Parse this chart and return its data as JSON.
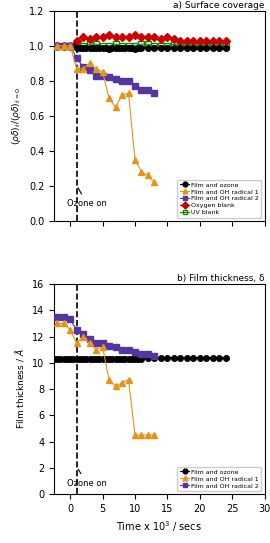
{
  "panel_a_title": "a) Surface coverage",
  "panel_b_title": "b) Film thickness, δ",
  "xlabel": "Time x 10³ / secs",
  "ozone_label": "Ozone on",
  "film_ozone_color": "#000000",
  "oh_radical1_color": "#E8921A",
  "oh_radical2_color": "#5535A0",
  "oxygen_blank_color": "#CC0000",
  "uv_blank_color": "#009000",
  "dashed_x": 1.0,
  "panel_a": {
    "film_ozone": {
      "x": [
        -2.5,
        -2,
        -1.5,
        -1,
        -0.5,
        0,
        0.5,
        1,
        1.5,
        2,
        2.5,
        3,
        3.5,
        4,
        4.5,
        5,
        5.5,
        6,
        6.5,
        7,
        7.5,
        8,
        8.5,
        9,
        9.5,
        10,
        10.5,
        11,
        12,
        13,
        14,
        15,
        16,
        17,
        18,
        19,
        20,
        21,
        22,
        23,
        24
      ],
      "y": [
        1.0,
        1.0,
        1.0,
        1.0,
        1.0,
        1.0,
        1.0,
        0.99,
        0.99,
        0.99,
        0.99,
        0.99,
        0.99,
        0.99,
        0.99,
        0.99,
        0.99,
        0.98,
        0.99,
        0.99,
        0.99,
        0.99,
        0.99,
        0.99,
        0.99,
        0.98,
        0.99,
        0.99,
        0.99,
        0.99,
        0.99,
        0.99,
        0.99,
        0.99,
        0.99,
        0.99,
        0.99,
        0.99,
        0.99,
        0.99,
        0.99
      ]
    },
    "oh_radical1": {
      "x": [
        -2,
        -1,
        0,
        1,
        2,
        3,
        4,
        5,
        6,
        7,
        8,
        9,
        10,
        11,
        12,
        13
      ],
      "y": [
        1.0,
        1.0,
        1.0,
        0.87,
        0.87,
        0.9,
        0.87,
        0.85,
        0.7,
        0.65,
        0.72,
        0.73,
        0.35,
        0.28,
        0.26,
        0.22
      ]
    },
    "oh_radical2": {
      "x": [
        -2,
        -1,
        0,
        1,
        2,
        3,
        4,
        5,
        6,
        7,
        8,
        9,
        10,
        11,
        12,
        13
      ],
      "y": [
        1.0,
        1.0,
        1.0,
        0.93,
        0.88,
        0.86,
        0.83,
        0.83,
        0.82,
        0.81,
        0.8,
        0.8,
        0.77,
        0.75,
        0.75,
        0.73
      ]
    },
    "oxygen_blank": {
      "x": [
        -2,
        -1,
        0,
        1,
        2,
        3,
        4,
        5,
        6,
        7,
        8,
        9,
        10,
        11,
        12,
        13,
        14,
        15,
        16,
        17,
        18,
        19,
        20,
        21,
        22,
        23,
        24
      ],
      "y": [
        1.0,
        1.0,
        1.0,
        1.03,
        1.05,
        1.04,
        1.05,
        1.05,
        1.06,
        1.05,
        1.05,
        1.05,
        1.06,
        1.05,
        1.05,
        1.05,
        1.04,
        1.05,
        1.04,
        1.03,
        1.03,
        1.03,
        1.03,
        1.03,
        1.03,
        1.03,
        1.03
      ]
    },
    "uv_blank": {
      "x": [
        -2,
        -1,
        0,
        1,
        2,
        3,
        4,
        5,
        6,
        7,
        8,
        9,
        10,
        11,
        12,
        13,
        14,
        15,
        16,
        17,
        18,
        19,
        20,
        21,
        22,
        23,
        24
      ],
      "y": [
        1.0,
        1.0,
        1.0,
        1.01,
        1.0,
        1.01,
        1.01,
        1.0,
        1.0,
        1.01,
        1.0,
        1.0,
        1.0,
        1.01,
        1.01,
        1.0,
        1.0,
        1.0,
        1.01,
        1.0,
        1.0,
        1.0,
        1.0,
        1.0,
        1.0,
        1.0,
        1.0
      ]
    },
    "ylim": [
      0.0,
      1.2
    ],
    "yticks": [
      0.0,
      0.2,
      0.4,
      0.6,
      0.8,
      1.0,
      1.2
    ]
  },
  "panel_b": {
    "film_ozone": {
      "x": [
        -2.5,
        -2,
        -1.5,
        -1,
        -0.5,
        0,
        0.5,
        1,
        1.5,
        2,
        2.5,
        3,
        3.5,
        4,
        4.5,
        5,
        5.5,
        6,
        6.5,
        7,
        7.5,
        8,
        8.5,
        9,
        9.5,
        10,
        10.5,
        11,
        12,
        13,
        14,
        15,
        16,
        17,
        18,
        19,
        20,
        21,
        22,
        23,
        24
      ],
      "y": [
        10.3,
        10.3,
        10.3,
        10.3,
        10.3,
        10.3,
        10.3,
        10.3,
        10.3,
        10.3,
        10.3,
        10.3,
        10.3,
        10.3,
        10.3,
        10.3,
        10.3,
        10.3,
        10.3,
        10.3,
        10.3,
        10.3,
        10.3,
        10.3,
        10.3,
        10.3,
        10.3,
        10.3,
        10.4,
        10.4,
        10.4,
        10.4,
        10.4,
        10.4,
        10.4,
        10.4,
        10.4,
        10.4,
        10.4,
        10.4,
        10.4
      ]
    },
    "oh_radical1": {
      "x": [
        -2,
        -1,
        0,
        1,
        2,
        3,
        4,
        5,
        6,
        7,
        8,
        9,
        10,
        11,
        12,
        13
      ],
      "y": [
        13.0,
        13.0,
        12.5,
        11.5,
        12.0,
        11.5,
        11.0,
        11.2,
        8.7,
        8.2,
        8.5,
        8.7,
        4.5,
        4.5,
        4.5,
        4.5
      ]
    },
    "oh_radical2": {
      "x": [
        -2,
        -1,
        0,
        1,
        2,
        3,
        4,
        5,
        6,
        7,
        8,
        9,
        10,
        11,
        12,
        13
      ],
      "y": [
        13.5,
        13.5,
        13.3,
        12.5,
        12.2,
        11.8,
        11.5,
        11.5,
        11.3,
        11.2,
        11.0,
        11.0,
        10.8,
        10.7,
        10.7,
        10.5
      ]
    },
    "ylim": [
      0,
      16
    ],
    "yticks": [
      0,
      2,
      4,
      6,
      8,
      10,
      12,
      14,
      16
    ]
  },
  "xlim": [
    -2.5,
    30
  ],
  "xticks": [
    0,
    5,
    10,
    15,
    20,
    25,
    30
  ],
  "figsize": [
    2.7,
    5.43
  ],
  "dpi": 100
}
